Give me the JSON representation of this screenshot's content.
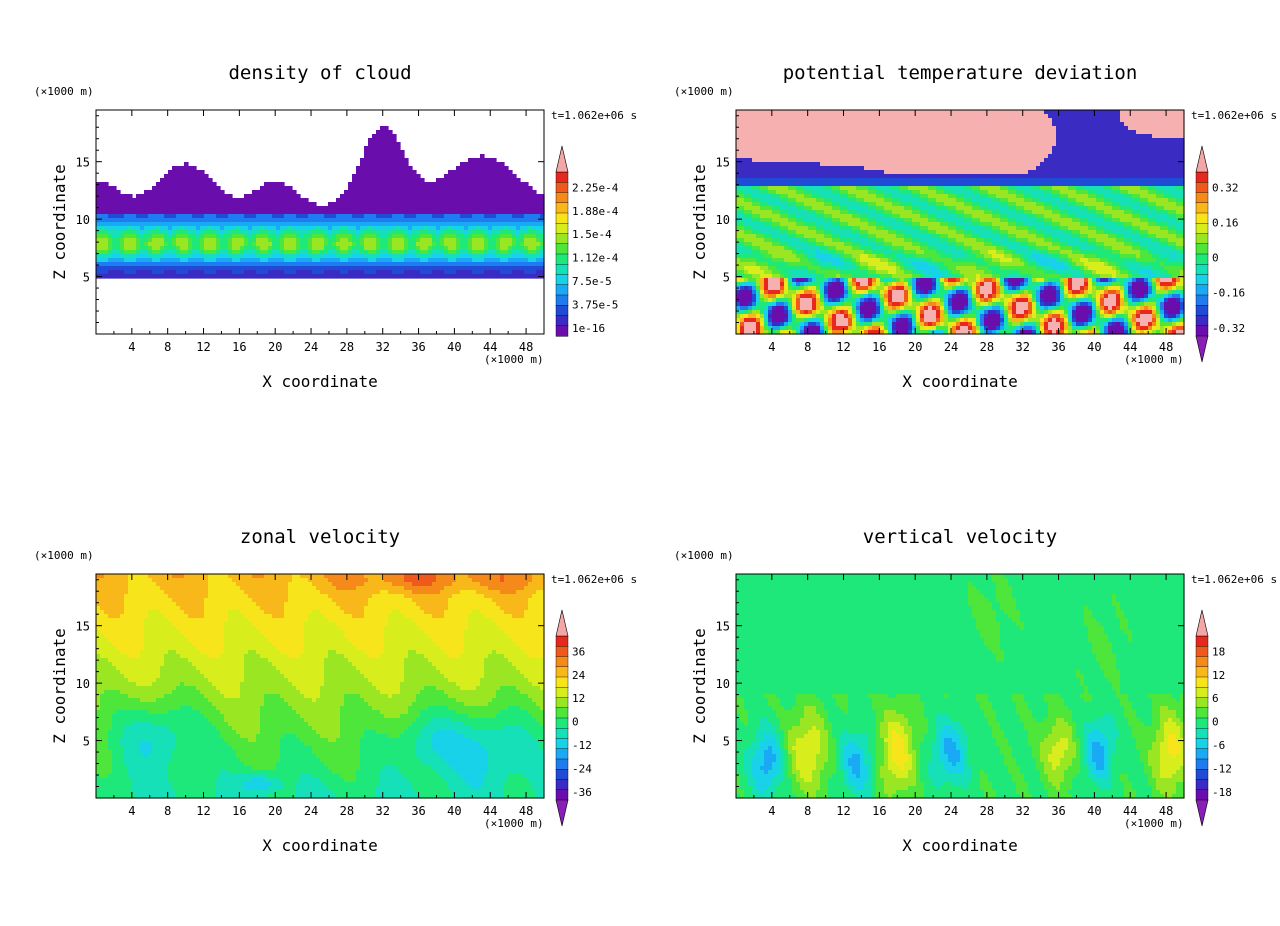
{
  "chart_data": [
    {
      "type": "heatmap",
      "title": "density of cloud",
      "xlabel": "X coordinate",
      "ylabel": "Z coordinate",
      "x_unit": "(×1000 m)",
      "y_unit": "(×1000 m)",
      "time_label": "t=1.062e+06 s",
      "xlim": [
        0,
        50
      ],
      "ylim": [
        0,
        19.5
      ],
      "x_ticks": [
        4,
        8,
        12,
        16,
        20,
        24,
        28,
        32,
        36,
        40,
        44,
        48
      ],
      "y_ticks": [
        5,
        10,
        15
      ],
      "colorbar_labels": [
        "2.25e-4",
        "1.88e-4",
        "1.5e-4",
        "1.12e-4",
        "7.5e-5",
        "3.75e-5",
        "1e-16"
      ],
      "colorbar_arrows": {
        "top": true,
        "bottom": false
      },
      "field": "cloud"
    },
    {
      "type": "heatmap",
      "title": "potential temperature deviation",
      "xlabel": "X coordinate",
      "ylabel": "Z coordinate",
      "x_unit": "(×1000 m)",
      "y_unit": "(×1000 m)",
      "time_label": "t=1.062e+06 s",
      "xlim": [
        0,
        50
      ],
      "ylim": [
        0,
        19.5
      ],
      "x_ticks": [
        4,
        8,
        12,
        16,
        20,
        24,
        28,
        32,
        36,
        40,
        44,
        48
      ],
      "y_ticks": [
        5,
        10,
        15
      ],
      "colorbar_labels": [
        "0.32",
        "0.16",
        "0",
        "-0.16",
        "-0.32"
      ],
      "colorbar_arrows": {
        "top": true,
        "bottom": true
      },
      "field": "theta"
    },
    {
      "type": "heatmap",
      "title": "zonal velocity",
      "xlabel": "X coordinate",
      "ylabel": "Z coordinate",
      "x_unit": "(×1000 m)",
      "y_unit": "(×1000 m)",
      "time_label": "t=1.062e+06 s",
      "xlim": [
        0,
        50
      ],
      "ylim": [
        0,
        19.5
      ],
      "x_ticks": [
        4,
        8,
        12,
        16,
        20,
        24,
        28,
        32,
        36,
        40,
        44,
        48
      ],
      "y_ticks": [
        5,
        10,
        15
      ],
      "colorbar_labels": [
        "36",
        "24",
        "12",
        "0",
        "-12",
        "-24",
        "-36"
      ],
      "colorbar_arrows": {
        "top": true,
        "bottom": true
      },
      "field": "zonal"
    },
    {
      "type": "heatmap",
      "title": "vertical velocity",
      "xlabel": "X coordinate",
      "ylabel": "Z coordinate",
      "x_unit": "(×1000 m)",
      "y_unit": "(×1000 m)",
      "time_label": "t=1.062e+06 s",
      "xlim": [
        0,
        50
      ],
      "ylim": [
        0,
        19.5
      ],
      "x_ticks": [
        4,
        8,
        12,
        16,
        20,
        24,
        28,
        32,
        36,
        40,
        44,
        48
      ],
      "y_ticks": [
        5,
        10,
        15
      ],
      "colorbar_labels": [
        "18",
        "12",
        "6",
        "0",
        "-6",
        "-12",
        "-18"
      ],
      "colorbar_arrows": {
        "top": true,
        "bottom": true
      },
      "field": "vertical"
    }
  ],
  "colors": {
    "palette": [
      "#6a0dad",
      "#3a2bc2",
      "#1f4bd6",
      "#1f7cf0",
      "#19a9f5",
      "#17d2e8",
      "#15e0b8",
      "#1fe87a",
      "#4ee63a",
      "#9ae622",
      "#d7ee1c",
      "#f7e41a",
      "#f8b81a",
      "#f58a1a",
      "#ef5a1c",
      "#e8281e",
      "#f6b0b0"
    ],
    "below_min": "#8a1fb8",
    "above_max": "#f4a6a6",
    "background": "#ffffff"
  }
}
